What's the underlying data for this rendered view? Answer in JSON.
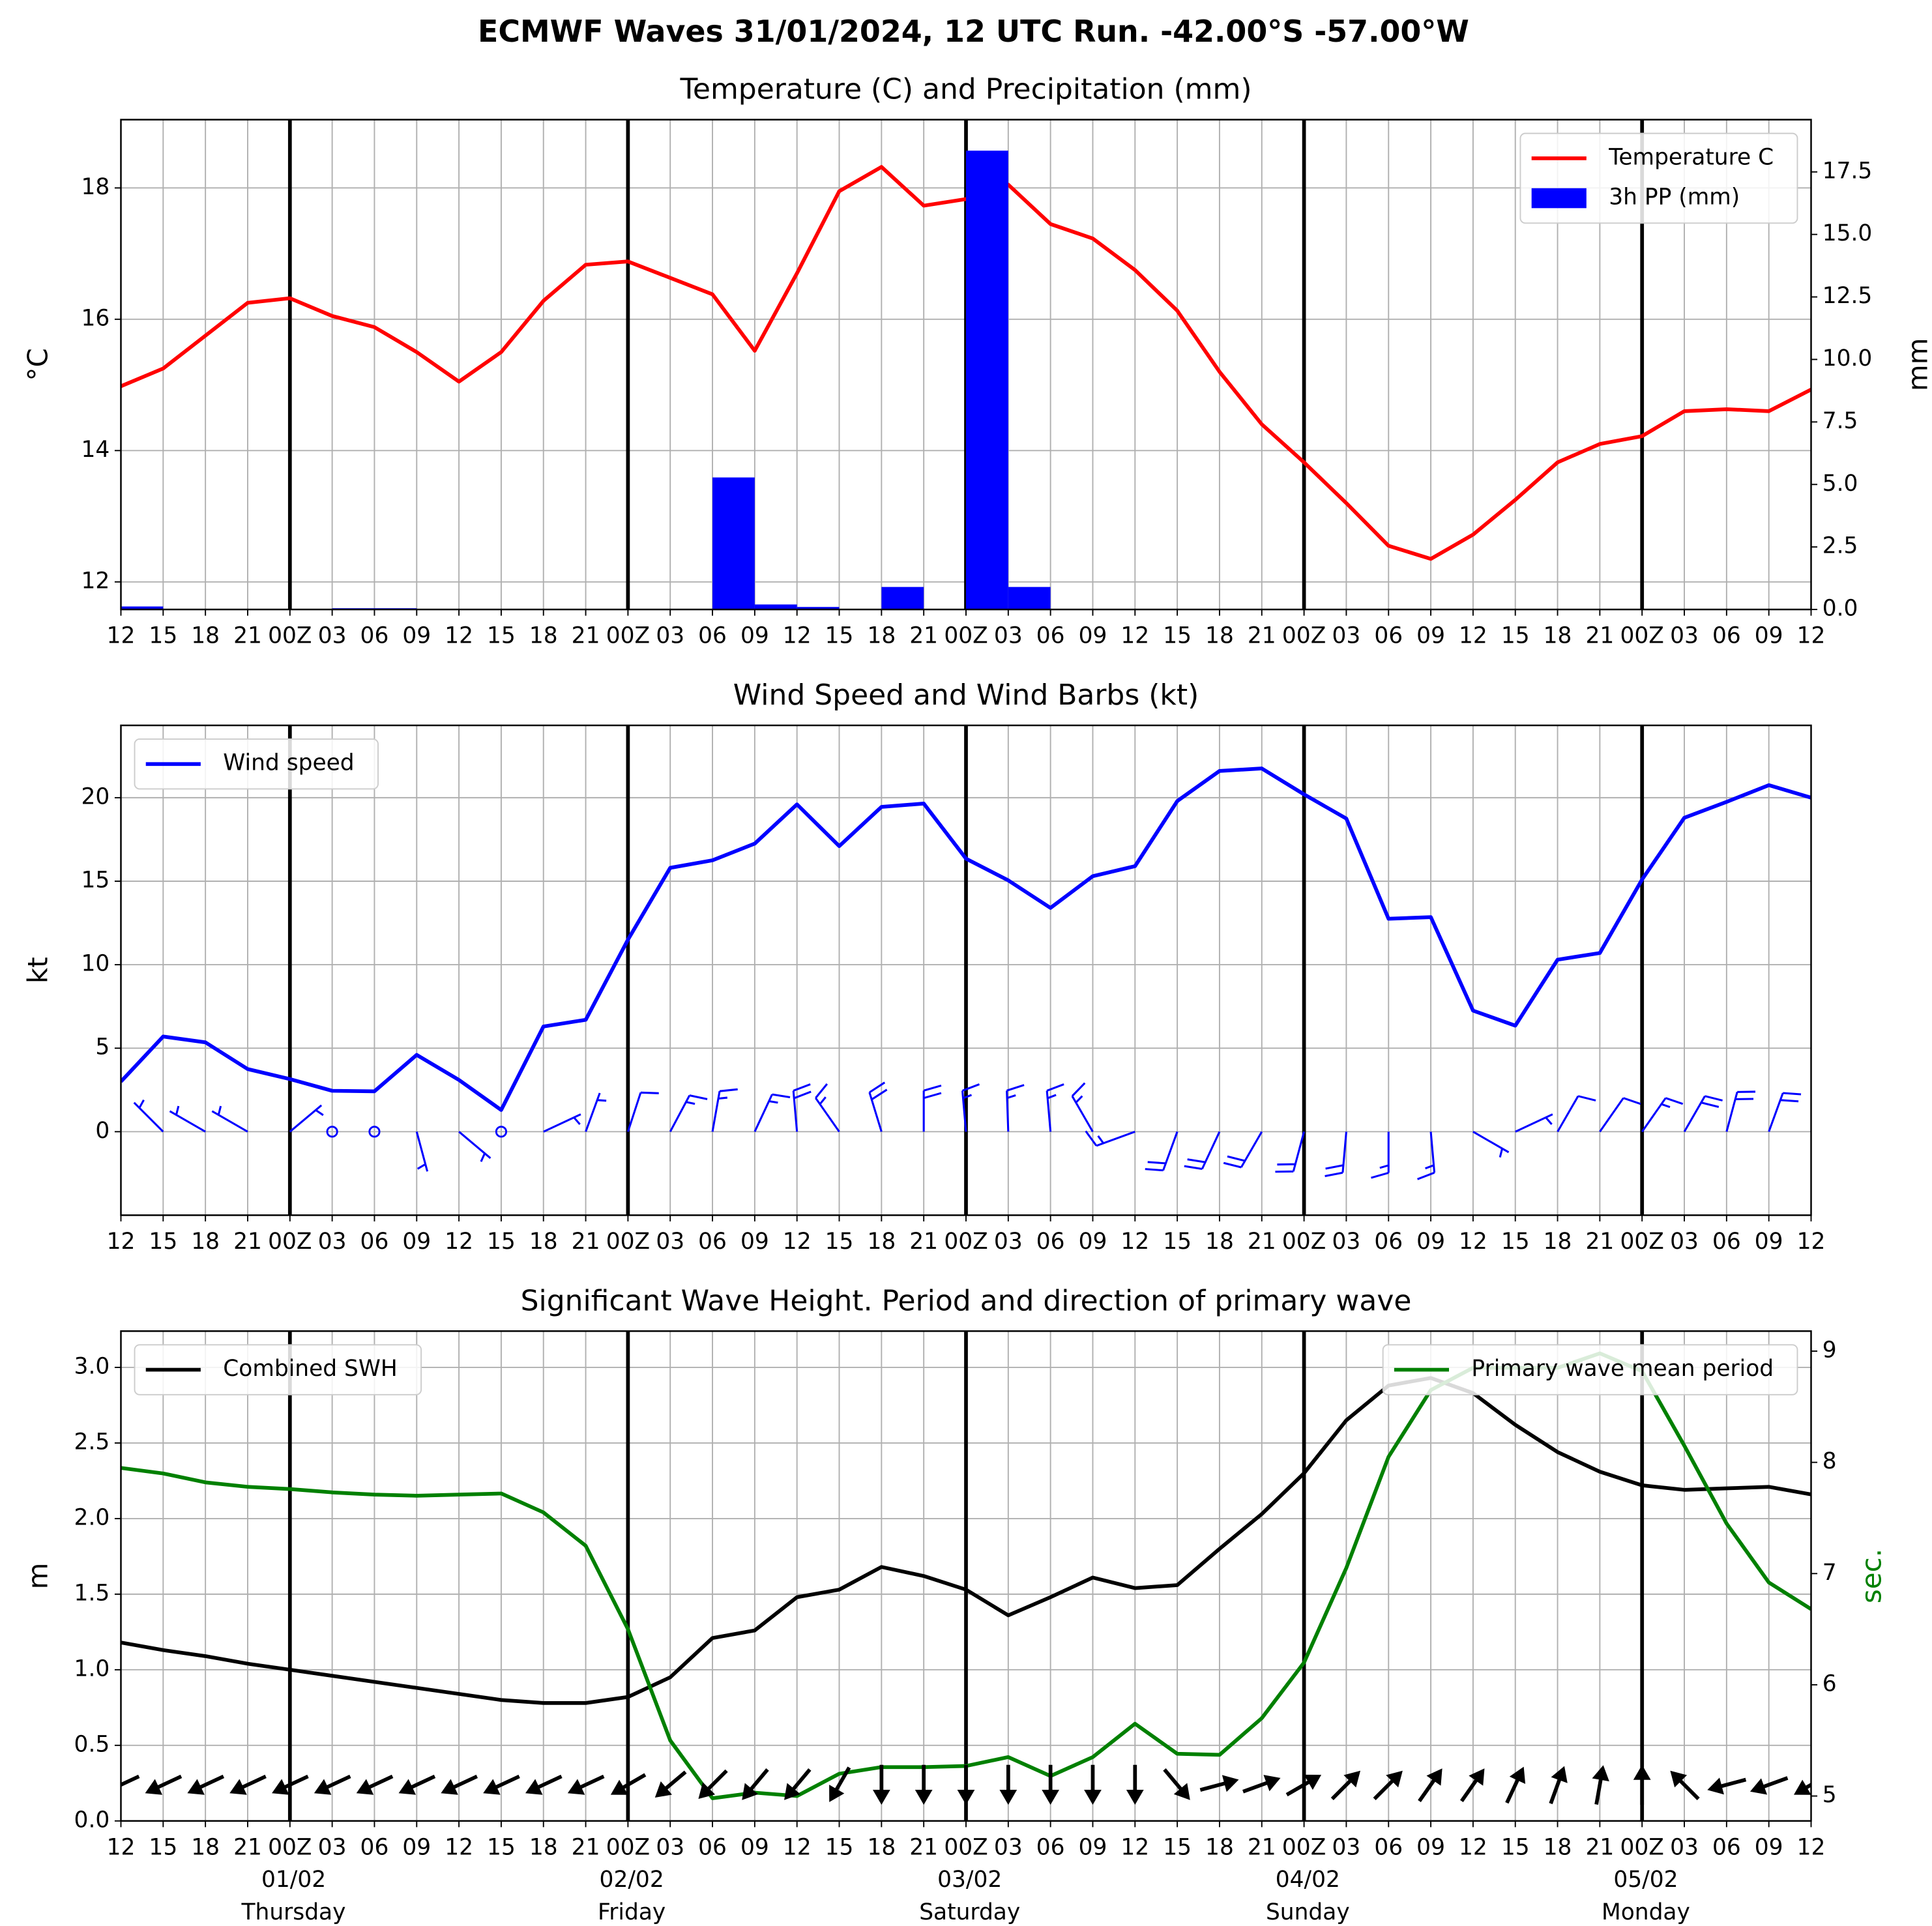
{
  "title": "ECMWF Waves 31/01/2024, 12 UTC Run. -42.00°S -57.00°W",
  "chart_data": [
    {
      "type": "line",
      "title": "Temperature (C) and Precipitation (mm)",
      "categories": [
        "12",
        "15",
        "18",
        "21",
        "00Z",
        "03",
        "06",
        "09",
        "12",
        "15",
        "18",
        "21",
        "00Z",
        "03",
        "06",
        "09",
        "12",
        "15",
        "18",
        "21",
        "00Z",
        "03",
        "06",
        "09",
        "12",
        "15",
        "18",
        "21",
        "00Z",
        "03",
        "06",
        "09",
        "12",
        "15",
        "18",
        "21",
        "00Z",
        "03",
        "06",
        "09",
        "12"
      ],
      "series": [
        {
          "name": "Temperature C",
          "color": "red",
          "legend": "upper right",
          "values": [
            14.98,
            15.25,
            15.75,
            16.25,
            16.32,
            16.05,
            15.88,
            15.5,
            15.05,
            15.5,
            16.28,
            16.83,
            16.88,
            16.63,
            16.38,
            15.52,
            16.7,
            17.95,
            18.32,
            17.73,
            17.83,
            18.05,
            17.45,
            17.23,
            16.75,
            16.13,
            15.2,
            14.4,
            13.82,
            13.2,
            12.55,
            12.35,
            12.72,
            13.25,
            13.82,
            14.1,
            14.22,
            14.6,
            14.63,
            14.6,
            14.93
          ]
        },
        {
          "name": "3h PP (mm)",
          "color": "blue",
          "type": "bar",
          "axis": "y2",
          "legend": "upper right",
          "values": [
            0.12,
            0,
            0,
            0,
            0,
            0.05,
            0.05,
            0,
            0,
            0,
            0,
            0,
            0,
            0,
            5.28,
            0.2,
            0.1,
            0,
            0.9,
            0,
            18.35,
            0.9,
            0.02,
            0,
            0,
            0,
            0,
            0,
            0,
            0,
            0,
            0,
            0,
            0,
            0,
            0,
            0,
            0,
            0,
            0,
            0
          ]
        }
      ],
      "ylabel": "°C",
      "y2label": "mm",
      "ylim": [
        11.58,
        19.04
      ],
      "yticks": [
        12,
        14,
        16,
        18
      ],
      "y2lim": [
        0,
        19.59
      ],
      "y2ticks": [
        {
          "value": 0,
          "label": "0.0"
        },
        {
          "value": 2.5,
          "label": "2.5"
        },
        {
          "value": 5,
          "label": "5.0"
        },
        {
          "value": 7.5,
          "label": "7.5"
        },
        {
          "value": 10,
          "label": "10.0"
        },
        {
          "value": 12.5,
          "label": "12.5"
        },
        {
          "value": 15,
          "label": "15.0"
        },
        {
          "value": 17.5,
          "label": "17.5"
        }
      ],
      "grid": true
    },
    {
      "type": "line",
      "title": "Wind Speed and Wind Barbs (kt)",
      "categories": [
        "12",
        "15",
        "18",
        "21",
        "00Z",
        "03",
        "06",
        "09",
        "12",
        "15",
        "18",
        "21",
        "00Z",
        "03",
        "06",
        "09",
        "12",
        "15",
        "18",
        "21",
        "00Z",
        "03",
        "06",
        "09",
        "12",
        "15",
        "18",
        "21",
        "00Z",
        "03",
        "06",
        "09",
        "12",
        "15",
        "18",
        "21",
        "00Z",
        "03",
        "06",
        "09",
        "12"
      ],
      "series": [
        {
          "name": "Wind speed",
          "color": "blue",
          "legend": "upper left",
          "values": [
            3.0,
            5.7,
            5.35,
            3.75,
            3.15,
            2.45,
            2.42,
            4.6,
            3.1,
            1.3,
            6.3,
            6.7,
            11.5,
            15.8,
            16.25,
            17.25,
            19.6,
            17.1,
            19.45,
            19.65,
            16.35,
            15.05,
            13.4,
            15.3,
            15.9,
            19.8,
            21.6,
            21.75,
            20.2,
            18.75,
            12.75,
            12.85,
            7.25,
            6.35,
            10.3,
            10.7,
            15.1,
            18.8,
            19.75,
            20.75,
            20.0
          ]
        }
      ],
      "wind_direction": [
        315,
        315,
        300,
        300,
        50,
        0,
        0,
        165,
        130,
        0,
        65,
        20,
        18,
        28,
        10,
        25,
        355,
        325,
        343,
        0,
        355,
        358,
        355,
        330,
        250,
        200,
        205,
        210,
        195,
        185,
        180,
        175,
        120,
        65,
        30,
        35,
        35,
        30,
        15,
        20,
        25
      ],
      "ylabel": "kt",
      "ylim": [
        -5,
        24.33
      ],
      "yticks": [
        0,
        5,
        10,
        15,
        20
      ],
      "grid": true
    },
    {
      "type": "line",
      "title": "Significant Wave Height. Period and direction of primary wave",
      "categories": [
        "12",
        "15",
        "18",
        "21",
        "00Z",
        "03",
        "06",
        "09",
        "12",
        "15",
        "18",
        "21",
        "00Z",
        "03",
        "06",
        "09",
        "12",
        "15",
        "18",
        "21",
        "00Z",
        "03",
        "06",
        "09",
        "12",
        "15",
        "18",
        "21",
        "00Z",
        "03",
        "06",
        "09",
        "12",
        "15",
        "18",
        "21",
        "00Z",
        "03",
        "06",
        "09",
        "12"
      ],
      "day_labels": [
        {
          "date": "01/02",
          "day": "Thursday"
        },
        {
          "date": "02/02",
          "day": "Friday"
        },
        {
          "date": "03/02",
          "day": "Saturday"
        },
        {
          "date": "04/02",
          "day": "Sunday"
        },
        {
          "date": "05/02",
          "day": "Monday"
        }
      ],
      "series": [
        {
          "name": "Combined SWH",
          "color": "black",
          "legend": "upper left",
          "values": [
            1.18,
            1.13,
            1.09,
            1.04,
            1.0,
            0.96,
            0.92,
            0.88,
            0.84,
            0.8,
            0.78,
            0.78,
            0.82,
            0.95,
            1.21,
            1.26,
            1.48,
            1.53,
            1.68,
            1.62,
            1.53,
            1.36,
            1.48,
            1.61,
            1.54,
            1.56,
            1.8,
            2.03,
            2.3,
            2.65,
            2.88,
            2.93,
            2.83,
            2.62,
            2.44,
            2.31,
            2.22,
            2.19,
            2.2,
            2.21,
            2.16
          ]
        },
        {
          "name": "Primary wave mean period",
          "color": "green",
          "axis": "y2",
          "legend": "upper right",
          "values": [
            7.95,
            7.9,
            7.82,
            7.78,
            7.76,
            7.73,
            7.71,
            7.7,
            7.71,
            7.72,
            7.55,
            7.25,
            6.5,
            5.5,
            4.98,
            5.03,
            5.0,
            5.2,
            5.26,
            5.26,
            5.27,
            5.35,
            5.18,
            5.35,
            5.65,
            5.38,
            5.37,
            5.7,
            6.2,
            7.05,
            8.05,
            8.65,
            8.85,
            8.85,
            8.85,
            8.98,
            8.82,
            8.15,
            7.45,
            6.92,
            6.68
          ]
        }
      ],
      "wave_direction": [
        65,
        65,
        65,
        65,
        65,
        65,
        65,
        65,
        65,
        65,
        65,
        65,
        60,
        50,
        45,
        40,
        40,
        30,
        0,
        0,
        0,
        0,
        0,
        0,
        0,
        320,
        255,
        250,
        240,
        225,
        225,
        215,
        215,
        205,
        200,
        190,
        180,
        135,
        75,
        70,
        60
      ],
      "ylabel": "m",
      "y2label": "sec.",
      "y2label_color": "green",
      "ylim": [
        0,
        3.24
      ],
      "yticks": [
        {
          "value": 0,
          "label": "0.0"
        },
        {
          "value": 0.5,
          "label": "0.5"
        },
        {
          "value": 1,
          "label": "1.0"
        },
        {
          "value": 1.5,
          "label": "1.5"
        },
        {
          "value": 2,
          "label": "2.0"
        },
        {
          "value": 2.5,
          "label": "2.5"
        },
        {
          "value": 3,
          "label": "3.0"
        }
      ],
      "y2lim": [
        4.776,
        9.18
      ],
      "y2ticks": [
        5,
        6,
        7,
        8,
        9
      ],
      "grid": true
    }
  ]
}
